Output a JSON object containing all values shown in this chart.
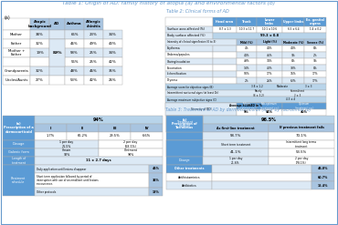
{
  "title": "Table 1: Origin of AD: family history of atopia (a) and environmental factors (b)",
  "title_color": "#6699cc",
  "bg_color": "#ffffff",
  "header_blue": "#a8c4e0",
  "row_blue_light": "#dce9f5",
  "blue_med": "#b8d4ea",
  "blue_dark": "#5b9bd5",
  "table2_title": "Table 2: Clinical forms of AD",
  "table3_title": "Table 3: Treatment of AD by dermocorticoids (a) or by Tacrolimus (b)",
  "t1_rows": [
    [
      "Mother",
      "38%",
      "",
      "66%",
      "23%",
      "34%"
    ],
    [
      "Father",
      "32%",
      "",
      "46%",
      "49%",
      "43%"
    ],
    [
      "Mother +\nFather",
      "19%",
      "",
      "58%",
      "25%",
      "34%"
    ],
    [
      "",
      "",
      "",
      "56%",
      "25%",
      "42%"
    ],
    [
      "Grandparents",
      "32%",
      "",
      "48%",
      "46%",
      "35%"
    ],
    [
      "Uncles/Aunts",
      "27%",
      "",
      "53%",
      "42%",
      "26%"
    ]
  ],
  "t2_intensity_rows": [
    [
      "Erythema",
      "4%",
      "44%",
      "44%",
      "8%"
    ],
    [
      "Oedema/papules",
      "44%",
      "46%",
      "9%",
      "2%"
    ],
    [
      "Oozing/exudation",
      "49%",
      "34%",
      "8%",
      "9%"
    ],
    [
      "Excoriation",
      "14%",
      "40%",
      "38%",
      "8%"
    ],
    [
      "Lichenification",
      "50%",
      "17%",
      "16%",
      "17%"
    ],
    [
      "Dryness",
      "2%",
      "26%",
      "62%",
      "17%"
    ]
  ],
  "schedule_rows": [
    [
      "Daily application until lesions disappear",
      "45%",
      9
    ],
    [
      "Short term application followed by period of\ninterruption with use of an emollient until lesions\nreoccurrence.",
      "36%",
      16
    ],
    [
      "Other protocols",
      "19%",
      9
    ]
  ]
}
